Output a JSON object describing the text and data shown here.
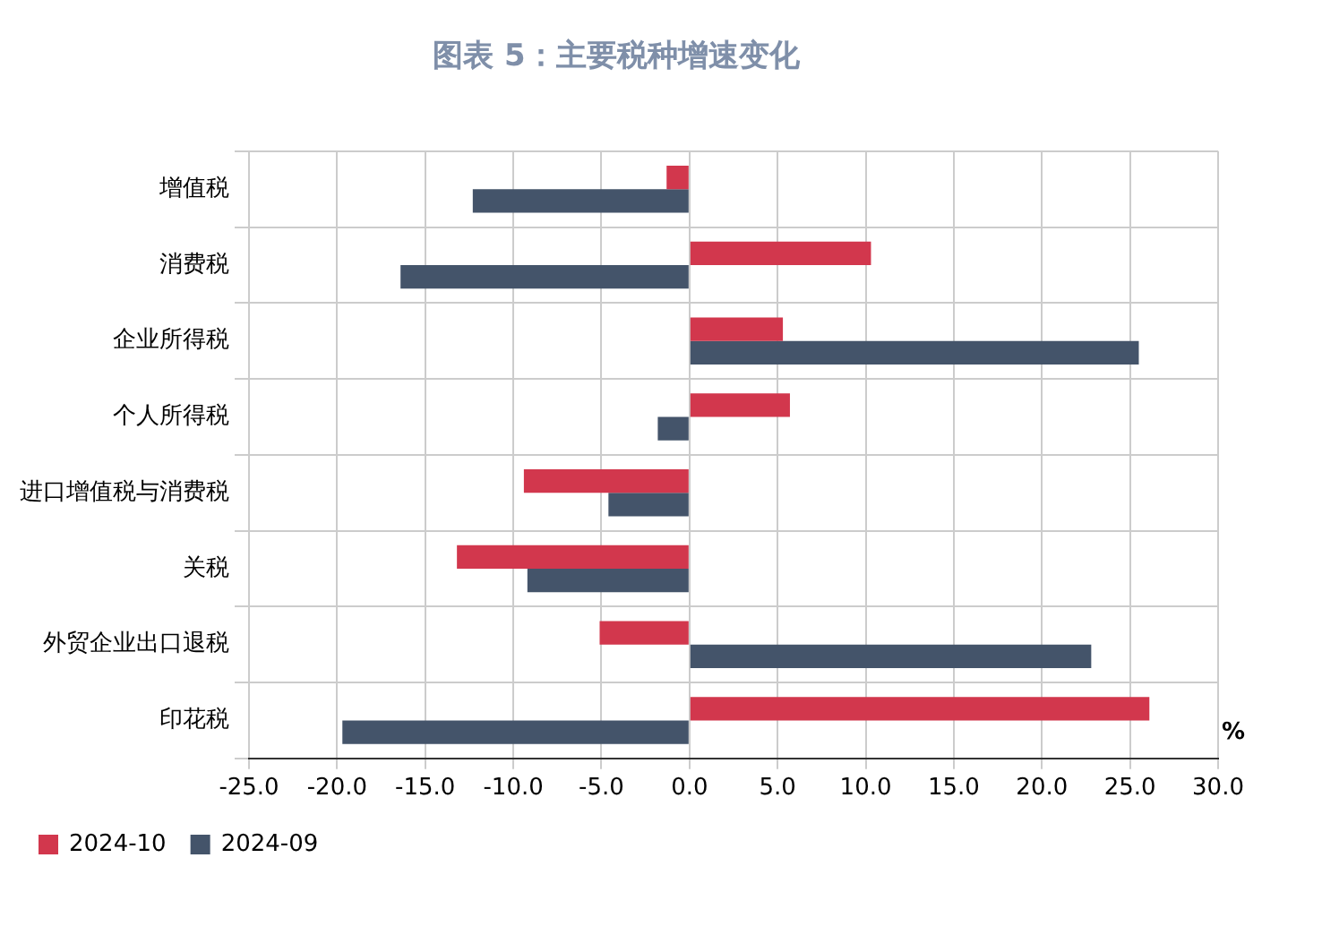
{
  "chart_data": {
    "type": "bar",
    "orientation": "horizontal",
    "title": "图表 5：主要税种增速变化",
    "xlabel": "%",
    "categories": [
      "增值税",
      "消费税",
      "企业所得税",
      "个人所得税",
      "进口增值税与消费税",
      "关税",
      "外贸企业出口退税",
      "印花税"
    ],
    "series": [
      {
        "name": "2024-10",
        "color": "#d2374d",
        "values": [
          -1.3,
          10.3,
          5.3,
          5.7,
          -9.4,
          -13.2,
          -5.1,
          26.1
        ]
      },
      {
        "name": "2024-09",
        "color": "#44546a",
        "values": [
          -12.3,
          -16.4,
          25.5,
          -1.8,
          -4.6,
          -9.2,
          22.8,
          -19.7
        ]
      }
    ],
    "xlim": [
      -25,
      30
    ],
    "xticks": [
      {
        "value": -25,
        "label": "-25.0"
      },
      {
        "value": -20,
        "label": "-20.0"
      },
      {
        "value": -15,
        "label": "-15.0"
      },
      {
        "value": -10,
        "label": "-10.0"
      },
      {
        "value": -5,
        "label": "-5.0"
      },
      {
        "value": 0,
        "label": "0.0"
      },
      {
        "value": 5,
        "label": "5.0"
      },
      {
        "value": 10,
        "label": "10.0"
      },
      {
        "value": 15,
        "label": "15.0"
      },
      {
        "value": 20,
        "label": "20.0"
      },
      {
        "value": 25,
        "label": "25.0"
      },
      {
        "value": 30,
        "label": "30.0"
      }
    ],
    "grid": true,
    "legend": "bottom left"
  }
}
